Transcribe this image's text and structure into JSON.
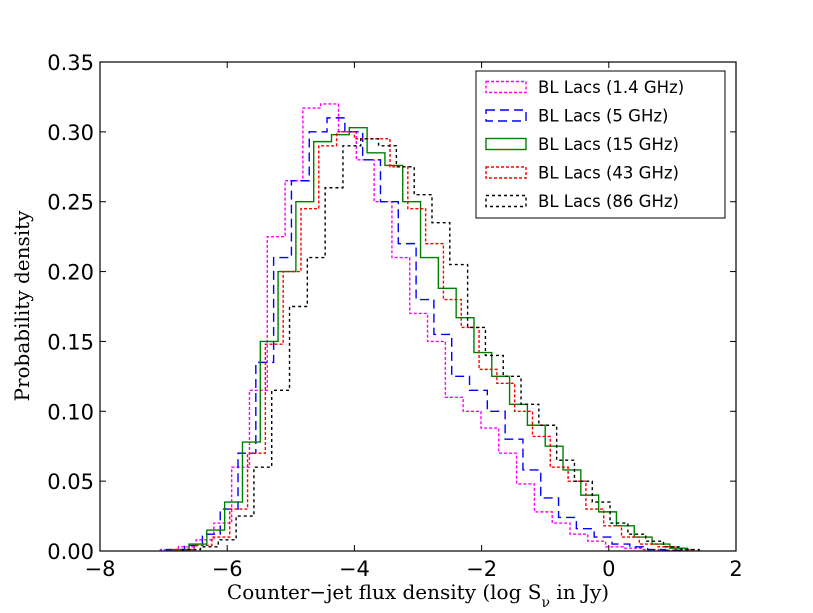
{
  "chart_data": {
    "type": "histogram",
    "title": "",
    "xlabel": "Counter−jet flux density (log S",
    "xlabel_sub": "ν",
    "xlabel_suffix": " in Jy)",
    "ylabel": "Probability density",
    "xlim": [
      -8,
      2
    ],
    "ylim": [
      0,
      0.35
    ],
    "xticks": [
      -8,
      -6,
      -4,
      -2,
      0,
      2
    ],
    "xtick_labels": [
      "−8",
      "−6",
      "−4",
      "−2",
      "0",
      "2"
    ],
    "yticks": [
      0.0,
      0.05,
      0.1,
      0.15,
      0.2,
      0.25,
      0.3,
      0.35
    ],
    "ytick_labels": [
      "0.00",
      "0.05",
      "0.10",
      "0.15",
      "0.20",
      "0.25",
      "0.30",
      "0.35"
    ],
    "legend_position": "top-right",
    "series": [
      {
        "name": "BL Lacs (1.4 GHz)",
        "color": "#ff00ff",
        "dash": "3,2",
        "edges": [
          -7.05,
          -6.77,
          -6.49,
          -6.21,
          -5.93,
          -5.65,
          -5.37,
          -5.09,
          -4.81,
          -4.53,
          -4.25,
          -3.97,
          -3.69,
          -3.41,
          -3.13,
          -2.85,
          -2.57,
          -2.29,
          -2.01,
          -1.73,
          -1.45,
          -1.17,
          -0.89,
          -0.61,
          -0.33,
          -0.05,
          0.23,
          0.51,
          0.79,
          1.07
        ],
        "values": [
          0.001,
          0.003,
          0.008,
          0.02,
          0.06,
          0.115,
          0.225,
          0.265,
          0.317,
          0.32,
          0.3,
          0.28,
          0.25,
          0.21,
          0.17,
          0.15,
          0.11,
          0.1,
          0.088,
          0.07,
          0.048,
          0.028,
          0.02,
          0.012,
          0.007,
          0.003,
          0.002,
          0.001,
          0.0005
        ]
      },
      {
        "name": "BL Lacs (5 GHz)",
        "color": "#0000ff",
        "dash": "9,5",
        "edges": [
          -6.95,
          -6.67,
          -6.39,
          -6.11,
          -5.83,
          -5.55,
          -5.27,
          -4.99,
          -4.71,
          -4.43,
          -4.15,
          -3.87,
          -3.59,
          -3.31,
          -3.03,
          -2.75,
          -2.47,
          -2.19,
          -1.91,
          -1.63,
          -1.35,
          -1.07,
          -0.79,
          -0.51,
          -0.23,
          0.05,
          0.33,
          0.61,
          0.89,
          1.17
        ],
        "values": [
          0.001,
          0.004,
          0.012,
          0.03,
          0.07,
          0.135,
          0.21,
          0.265,
          0.3,
          0.31,
          0.3,
          0.28,
          0.25,
          0.22,
          0.18,
          0.155,
          0.125,
          0.115,
          0.1,
          0.08,
          0.058,
          0.038,
          0.024,
          0.016,
          0.01,
          0.005,
          0.003,
          0.001,
          0.0005
        ]
      },
      {
        "name": "BL Lacs (15 GHz)",
        "color": "#008000",
        "dash": "",
        "edges": [
          -6.88,
          -6.6,
          -6.32,
          -6.04,
          -5.76,
          -5.48,
          -5.2,
          -4.92,
          -4.64,
          -4.36,
          -4.08,
          -3.8,
          -3.52,
          -3.24,
          -2.96,
          -2.68,
          -2.4,
          -2.12,
          -1.84,
          -1.56,
          -1.28,
          -1.0,
          -0.72,
          -0.44,
          -0.16,
          0.12,
          0.4,
          0.68,
          0.96,
          1.24
        ],
        "values": [
          0.001,
          0.005,
          0.015,
          0.035,
          0.078,
          0.15,
          0.2,
          0.25,
          0.293,
          0.298,
          0.303,
          0.285,
          0.276,
          0.25,
          0.21,
          0.188,
          0.167,
          0.142,
          0.125,
          0.105,
          0.09,
          0.075,
          0.058,
          0.04,
          0.028,
          0.018,
          0.01,
          0.005,
          0.002
        ]
      },
      {
        "name": "BL Lacs (43 GHz)",
        "color": "#ff0000",
        "dash": "3,2",
        "edges": [
          -6.8,
          -6.52,
          -6.24,
          -5.96,
          -5.68,
          -5.4,
          -5.12,
          -4.84,
          -4.56,
          -4.28,
          -4.0,
          -3.72,
          -3.44,
          -3.16,
          -2.88,
          -2.6,
          -2.32,
          -2.04,
          -1.76,
          -1.48,
          -1.2,
          -0.92,
          -0.64,
          -0.36,
          -0.08,
          0.2,
          0.48,
          0.76,
          1.04,
          1.32
        ],
        "values": [
          0.001,
          0.004,
          0.01,
          0.03,
          0.07,
          0.148,
          0.2,
          0.245,
          0.29,
          0.3,
          0.295,
          0.295,
          0.275,
          0.245,
          0.22,
          0.18,
          0.16,
          0.13,
          0.12,
          0.1,
          0.082,
          0.06,
          0.05,
          0.03,
          0.018,
          0.01,
          0.005,
          0.003,
          0.001
        ]
      },
      {
        "name": "BL Lacs (86 GHz)",
        "color": "#000000",
        "dash": "3,3",
        "edges": [
          -6.7,
          -6.42,
          -6.14,
          -5.86,
          -5.58,
          -5.3,
          -5.02,
          -4.74,
          -4.46,
          -4.18,
          -3.9,
          -3.62,
          -3.34,
          -3.06,
          -2.78,
          -2.5,
          -2.22,
          -1.94,
          -1.66,
          -1.38,
          -1.1,
          -0.82,
          -0.54,
          -0.26,
          0.02,
          0.3,
          0.58,
          0.86,
          1.14,
          1.42
        ],
        "values": [
          0.001,
          0.003,
          0.008,
          0.025,
          0.06,
          0.115,
          0.175,
          0.21,
          0.26,
          0.29,
          0.295,
          0.29,
          0.275,
          0.255,
          0.235,
          0.205,
          0.16,
          0.14,
          0.125,
          0.105,
          0.09,
          0.065,
          0.05,
          0.035,
          0.02,
          0.012,
          0.007,
          0.003,
          0.001
        ]
      }
    ]
  }
}
